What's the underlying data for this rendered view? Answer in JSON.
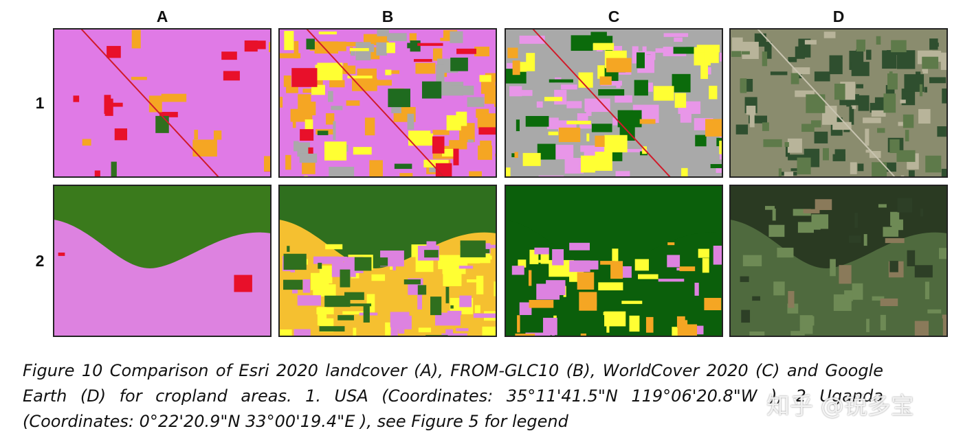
{
  "figure": {
    "columns": [
      "A",
      "B",
      "C",
      "D"
    ],
    "rows": [
      "1",
      "2"
    ],
    "caption": "Figure 10 Comparison of Esri 2020 landcover (A), FROM-GLC10 (B), WorldCover 2020 (C) and Google Earth (D) for cropland areas. 1. USA (Coordinates: 35°11'41.5\"N 119°06'20.8\"W ), 2 Uganda (Coordinates: 0°22'20.9\"N 33°00'19.4\"E ), see Figure 5 for legend",
    "watermark": "知乎 @锐多宝"
  }
}
